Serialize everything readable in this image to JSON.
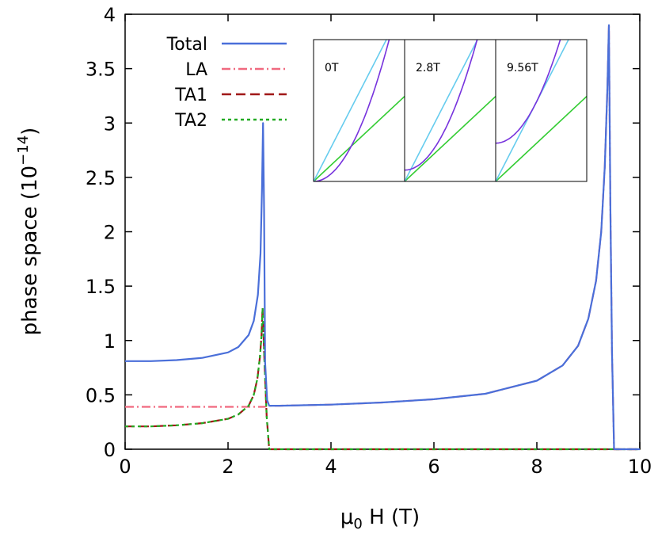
{
  "chart_data": {
    "type": "line",
    "xlabel": "μ0 H (T)",
    "xlabel_parts": {
      "mu": "μ",
      "sub": "0",
      "rest": " H (T)"
    },
    "ylabel": "phase space (10^-14)",
    "ylabel_parts": {
      "main": "phase space (10",
      "sup": "−14",
      "close": ")"
    },
    "xlim": [
      0,
      10
    ],
    "ylim": [
      0,
      4
    ],
    "xticks": [
      0,
      2,
      4,
      6,
      8,
      10
    ],
    "xtick_labels": [
      "0",
      "2",
      "4",
      "6",
      "8",
      "10"
    ],
    "yticks": [
      0,
      0.5,
      1,
      1.5,
      2,
      2.5,
      3,
      3.5,
      4
    ],
    "ytick_labels": [
      "0",
      "0.5",
      "1",
      "1.5",
      "2",
      "2.5",
      "3",
      "3.5",
      "4"
    ],
    "series": [
      {
        "name": "Total",
        "color": "#4a6fd9",
        "dash": "solid",
        "x": [
          0,
          0.5,
          1.0,
          1.5,
          2.0,
          2.2,
          2.4,
          2.5,
          2.58,
          2.63,
          2.66,
          2.68,
          2.7,
          2.72,
          2.76,
          2.8,
          3.0,
          4.0,
          5.0,
          6.0,
          7.0,
          8.0,
          8.5,
          8.8,
          9.0,
          9.15,
          9.25,
          9.32,
          9.37,
          9.4,
          9.43,
          9.46,
          9.5,
          10.0
        ],
        "values": [
          0.81,
          0.81,
          0.82,
          0.84,
          0.89,
          0.94,
          1.05,
          1.18,
          1.42,
          1.8,
          2.4,
          3.0,
          2.2,
          0.8,
          0.45,
          0.4,
          0.4,
          0.41,
          0.43,
          0.46,
          0.51,
          0.63,
          0.77,
          0.95,
          1.2,
          1.55,
          2.0,
          2.6,
          3.3,
          3.9,
          2.2,
          0.9,
          0.0,
          0.0
        ]
      },
      {
        "name": "LA",
        "color": "#f0697f",
        "dash": "dashdot",
        "x": [
          0,
          1.0,
          2.0,
          2.5,
          2.7,
          2.8,
          3.0,
          4.0,
          5.0,
          6.0,
          7.0,
          8.0,
          8.5,
          8.8,
          9.0,
          9.15,
          9.25,
          9.32,
          9.37,
          9.4,
          9.43,
          9.46,
          9.5,
          10.0
        ],
        "values": [
          0.39,
          0.39,
          0.39,
          0.39,
          0.39,
          0.4,
          0.4,
          0.41,
          0.43,
          0.46,
          0.51,
          0.63,
          0.77,
          0.95,
          1.2,
          1.55,
          2.0,
          2.6,
          3.3,
          3.9,
          2.2,
          0.9,
          0.0,
          0.0
        ]
      },
      {
        "name": "TA1",
        "color": "#a01818",
        "dash": "dashed",
        "x": [
          0,
          0.5,
          1.0,
          1.5,
          2.0,
          2.2,
          2.4,
          2.5,
          2.57,
          2.62,
          2.65,
          2.67,
          2.7,
          2.75,
          2.8,
          3.0,
          10.0
        ],
        "values": [
          0.21,
          0.21,
          0.22,
          0.24,
          0.28,
          0.32,
          0.4,
          0.5,
          0.65,
          0.85,
          1.05,
          1.3,
          0.9,
          0.3,
          0.0,
          0.0,
          0.0
        ]
      },
      {
        "name": "TA2",
        "color": "#22aa22",
        "dash": "dotted",
        "x": [
          0,
          0.5,
          1.0,
          1.5,
          2.0,
          2.2,
          2.4,
          2.5,
          2.57,
          2.62,
          2.65,
          2.67,
          2.7,
          2.75,
          2.8,
          3.0,
          10.0
        ],
        "values": [
          0.21,
          0.21,
          0.22,
          0.24,
          0.28,
          0.32,
          0.4,
          0.5,
          0.65,
          0.85,
          1.05,
          1.3,
          0.9,
          0.3,
          0.0,
          0.0,
          0.0
        ]
      }
    ],
    "legend": {
      "position": "top-left",
      "entries": [
        "Total",
        "LA",
        "TA1",
        "TA2"
      ]
    },
    "inset": {
      "panels": [
        {
          "label": "0T",
          "parabola_offset": 0.0
        },
        {
          "label": "2.8T",
          "parabola_offset": 0.08
        },
        {
          "label": "9.56T",
          "parabola_offset": 0.27
        }
      ],
      "colors": {
        "parabola": "#7733dd",
        "steep_line": "#66ccee",
        "shallow_line": "#33cc33"
      }
    }
  }
}
